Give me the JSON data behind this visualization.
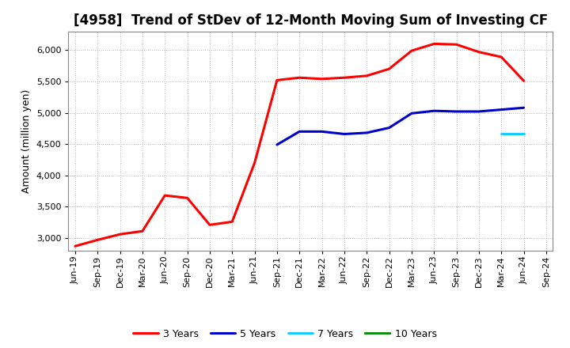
{
  "title": "[4958]  Trend of StDev of 12-Month Moving Sum of Investing CF",
  "ylabel": "Amount (million yen)",
  "background_color": "#ffffff",
  "grid_color": "#bbbbbb",
  "ylim": [
    2800,
    6300
  ],
  "yticks": [
    3000,
    3500,
    4000,
    4500,
    5000,
    5500,
    6000
  ],
  "series": {
    "3 Years": {
      "color": "#ff0000",
      "x": [
        "Jun-19",
        "Sep-19",
        "Dec-19",
        "Mar-20",
        "Jun-20",
        "Sep-20",
        "Dec-20",
        "Mar-21",
        "Jun-21",
        "Sep-21",
        "Dec-21",
        "Mar-22",
        "Jun-22",
        "Sep-22",
        "Dec-22",
        "Mar-23",
        "Jun-23",
        "Sep-23",
        "Dec-23",
        "Mar-24",
        "Jun-24"
      ],
      "y": [
        2870,
        2970,
        3060,
        3110,
        3680,
        3640,
        3210,
        3260,
        4200,
        5520,
        5560,
        5540,
        5560,
        5590,
        5700,
        5990,
        6100,
        6090,
        5970,
        5890,
        5510
      ]
    },
    "5 Years": {
      "color": "#0000cc",
      "x": [
        "Sep-21",
        "Dec-21",
        "Mar-22",
        "Jun-22",
        "Sep-22",
        "Dec-22",
        "Mar-23",
        "Jun-23",
        "Sep-23",
        "Dec-23",
        "Mar-24",
        "Jun-24"
      ],
      "y": [
        4490,
        4700,
        4700,
        4660,
        4680,
        4760,
        4990,
        5030,
        5020,
        5020,
        5050,
        5080
      ]
    },
    "7 Years": {
      "color": "#00ccff",
      "x": [
        "Mar-24",
        "Jun-24"
      ],
      "y": [
        4670,
        4670
      ]
    },
    "10 Years": {
      "color": "#008800",
      "x": [],
      "y": []
    }
  },
  "xtick_labels": [
    "Jun-19",
    "Sep-19",
    "Dec-19",
    "Mar-20",
    "Jun-20",
    "Sep-20",
    "Dec-20",
    "Mar-21",
    "Jun-21",
    "Sep-21",
    "Dec-21",
    "Mar-22",
    "Jun-22",
    "Sep-22",
    "Dec-22",
    "Mar-23",
    "Jun-23",
    "Sep-23",
    "Dec-23",
    "Mar-24",
    "Jun-24",
    "Sep-24"
  ],
  "title_fontsize": 12,
  "ylabel_fontsize": 9,
  "tick_fontsize": 8,
  "legend_fontsize": 9
}
